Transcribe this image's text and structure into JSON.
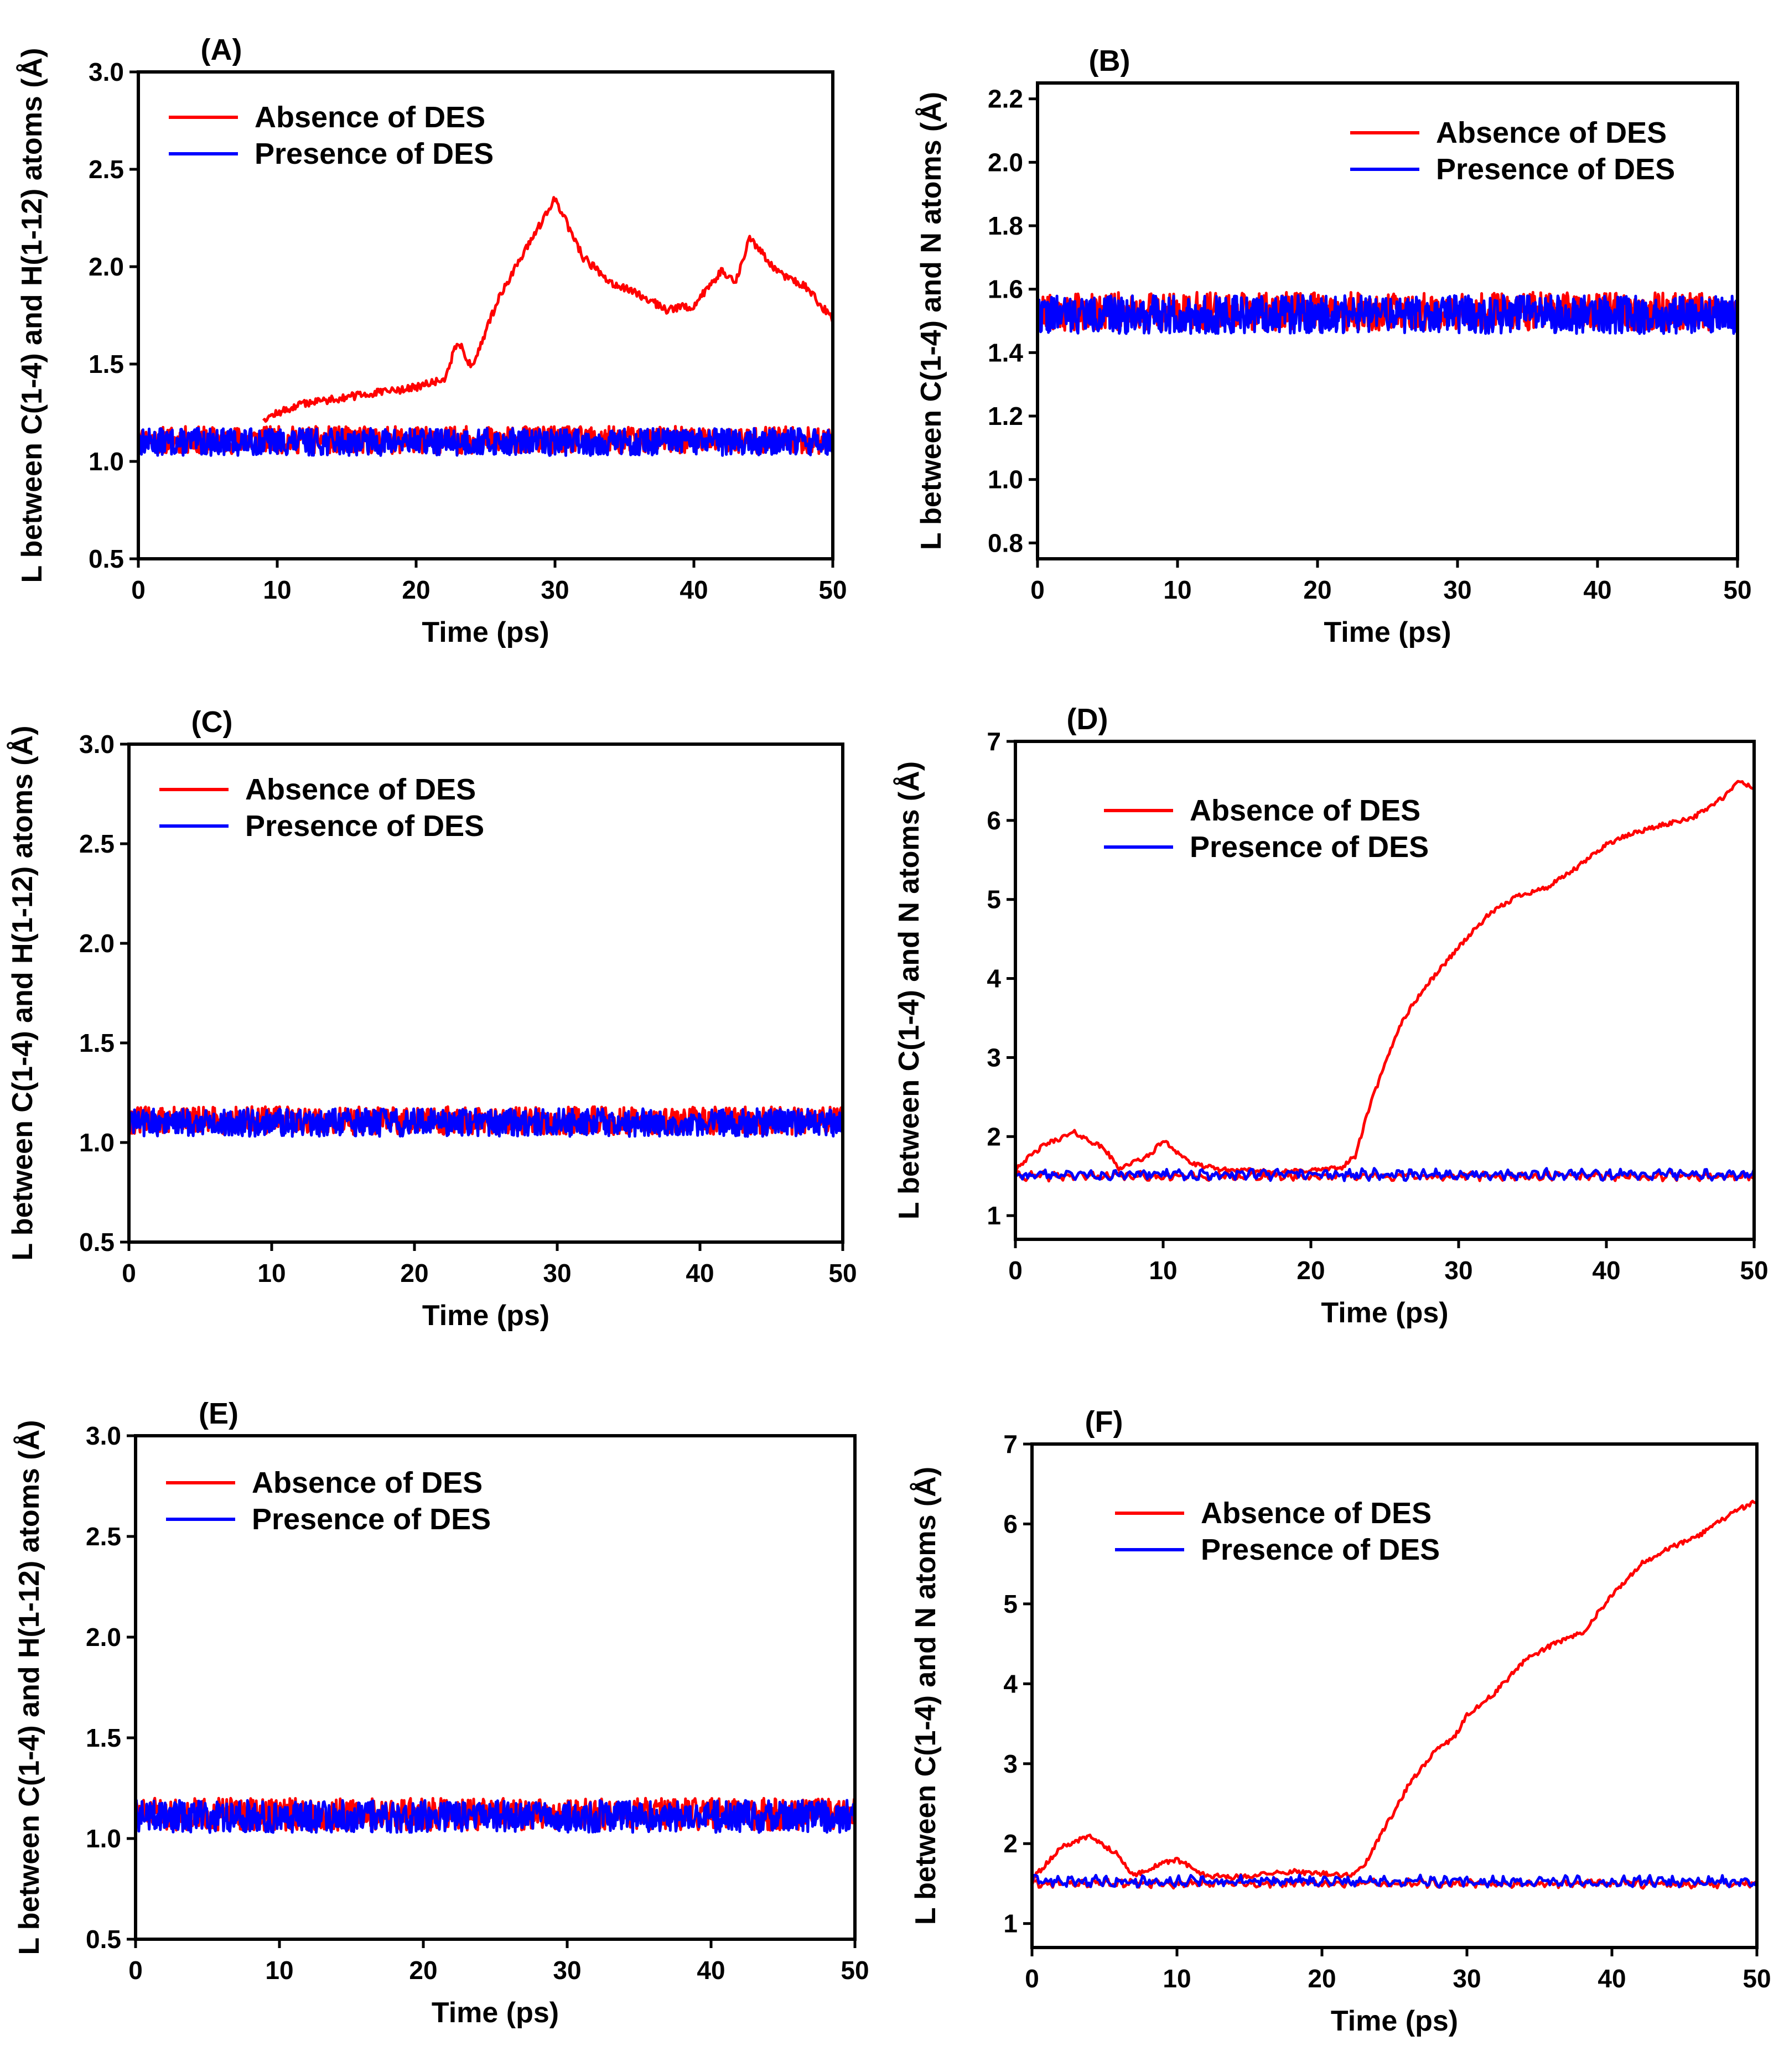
{
  "colors": {
    "absence": "#ff0000",
    "presence": "#0000ff",
    "axis": "#000000"
  },
  "chart_data": [
    {
      "panel": "(A)",
      "type": "line",
      "title": "",
      "xlabel": "Time (ps)",
      "ylabel": "L between C(1-4) and H(1-12) atoms (Å)",
      "xlim": [
        0,
        50
      ],
      "ylim": [
        0.5,
        3.0
      ],
      "xticks": [
        "0",
        "10",
        "20",
        "30",
        "40",
        "50"
      ],
      "yticks": [
        "0.5",
        "1.0",
        "1.5",
        "2.0",
        "2.5",
        "3.0"
      ],
      "legend": {
        "position": "top-left",
        "entries": [
          "Absence of DES",
          "Presence of DES"
        ]
      },
      "series": [
        {
          "name": "Absence of DES",
          "kind": "band",
          "mean": 1.11,
          "spread": 0.07,
          "seed": 11,
          "x": [
            0,
            50
          ],
          "y": [
            1.11,
            1.11
          ]
        },
        {
          "name": "Absence of DES",
          "kind": "drift",
          "seed": 12,
          "noise": 0.02,
          "x": [
            9,
            12,
            16,
            20,
            22,
            23,
            24,
            26,
            28,
            30,
            32,
            34,
            36,
            38,
            40,
            42,
            43,
            44,
            46,
            48,
            50
          ],
          "y": [
            1.22,
            1.3,
            1.34,
            1.38,
            1.42,
            1.62,
            1.48,
            1.85,
            2.1,
            2.35,
            2.05,
            1.92,
            1.86,
            1.78,
            1.8,
            1.98,
            1.92,
            2.15,
            1.97,
            1.9,
            1.73
          ]
        },
        {
          "name": "Presence of DES",
          "kind": "band",
          "mean": 1.1,
          "spread": 0.07,
          "seed": 13,
          "x": [
            0,
            50
          ],
          "y": [
            1.1,
            1.1
          ]
        }
      ]
    },
    {
      "panel": "(B)",
      "type": "line",
      "title": "",
      "xlabel": "Time (ps)",
      "ylabel": "L between C(1-4) and N atoms (Å)",
      "xlim": [
        0,
        50
      ],
      "ylim": [
        0.75,
        2.25
      ],
      "xticks": [
        "0",
        "10",
        "20",
        "30",
        "40",
        "50"
      ],
      "yticks": [
        "0.8",
        "1.0",
        "1.2",
        "1.4",
        "1.6",
        "1.8",
        "2.0",
        "2.2"
      ],
      "legend": {
        "position": "top-right",
        "entries": [
          "Absence of DES",
          "Presence of DES"
        ]
      },
      "series": [
        {
          "name": "Absence of DES",
          "kind": "band",
          "mean": 1.53,
          "spread": 0.06,
          "seed": 21,
          "x": [
            0,
            50
          ],
          "y": [
            1.53,
            1.53
          ]
        },
        {
          "name": "Presence of DES",
          "kind": "band",
          "mean": 1.52,
          "spread": 0.06,
          "seed": 22,
          "x": [
            0,
            50
          ],
          "y": [
            1.52,
            1.52
          ]
        }
      ]
    },
    {
      "panel": "(C)",
      "type": "line",
      "title": "",
      "xlabel": "Time (ps)",
      "ylabel": "L between C(1-4) and H(1-12) atoms (Å)",
      "xlim": [
        0,
        50
      ],
      "ylim": [
        0.5,
        3.0
      ],
      "xticks": [
        "0",
        "10",
        "20",
        "30",
        "40",
        "50"
      ],
      "yticks": [
        "0.5",
        "1.0",
        "1.5",
        "2.0",
        "2.5",
        "3.0"
      ],
      "legend": {
        "position": "top-left",
        "entries": [
          "Absence of DES",
          "Presence of DES"
        ]
      },
      "series": [
        {
          "name": "Absence of DES",
          "kind": "band",
          "mean": 1.11,
          "spread": 0.07,
          "seed": 31,
          "x": [
            0,
            50
          ],
          "y": [
            1.11,
            1.11
          ]
        },
        {
          "name": "Presence of DES",
          "kind": "band",
          "mean": 1.1,
          "spread": 0.07,
          "seed": 32,
          "x": [
            0,
            50
          ],
          "y": [
            1.1,
            1.1
          ]
        }
      ]
    },
    {
      "panel": "(D)",
      "type": "line",
      "title": "",
      "xlabel": "Time (ps)",
      "ylabel": "L between C(1-4) and N atoms (Å)",
      "xlim": [
        0,
        50
      ],
      "ylim": [
        0.7,
        7.0
      ],
      "xticks": [
        "0",
        "10",
        "20",
        "30",
        "40",
        "50"
      ],
      "yticks": [
        "1",
        "2",
        "3",
        "4",
        "5",
        "6",
        "7"
      ],
      "legend": {
        "position": "top-left",
        "entries": [
          "Absence of DES",
          "Presence of DES"
        ]
      },
      "series": [
        {
          "name": "Absence of DES",
          "kind": "thin",
          "mean": 1.5,
          "spread": 0.04,
          "seed": 41,
          "x": [
            0,
            50
          ],
          "y": [
            1.5,
            1.5
          ]
        },
        {
          "name": "Absence of DES",
          "kind": "drift",
          "seed": 42,
          "noise": 0.03,
          "x": [
            0,
            2,
            4,
            6,
            7,
            9,
            10,
            12,
            14,
            18,
            22,
            23,
            24,
            25,
            26,
            27,
            28,
            30,
            32,
            34,
            36,
            38,
            40,
            42,
            44,
            46,
            48,
            49,
            50
          ],
          "y": [
            1.6,
            1.9,
            2.05,
            1.85,
            1.6,
            1.75,
            1.95,
            1.65,
            1.58,
            1.55,
            1.6,
            1.75,
            2.4,
            2.9,
            3.4,
            3.7,
            3.95,
            4.4,
            4.8,
            5.05,
            5.15,
            5.4,
            5.7,
            5.85,
            5.95,
            6.05,
            6.3,
            6.5,
            6.4
          ]
        },
        {
          "name": "Presence of DES",
          "kind": "thin",
          "mean": 1.52,
          "spread": 0.05,
          "seed": 43,
          "x": [
            0,
            50
          ],
          "y": [
            1.52,
            1.52
          ]
        }
      ]
    },
    {
      "panel": "(E)",
      "type": "line",
      "title": "",
      "xlabel": "Time (ps)",
      "ylabel": "L between C(1-4) and H(1-12) atoms (Å)",
      "xlim": [
        0,
        50
      ],
      "ylim": [
        0.5,
        3.0
      ],
      "xticks": [
        "0",
        "10",
        "20",
        "30",
        "40",
        "50"
      ],
      "yticks": [
        "0.5",
        "1.0",
        "1.5",
        "2.0",
        "2.5",
        "3.0"
      ],
      "legend": {
        "position": "top-left",
        "entries": [
          "Absence of DES",
          "Presence of DES"
        ]
      },
      "series": [
        {
          "name": "Absence of DES",
          "kind": "band",
          "mean": 1.12,
          "spread": 0.08,
          "seed": 51,
          "x": [
            0,
            50
          ],
          "y": [
            1.12,
            1.12
          ]
        },
        {
          "name": "Presence of DES",
          "kind": "band",
          "mean": 1.11,
          "spread": 0.08,
          "seed": 52,
          "x": [
            0,
            50
          ],
          "y": [
            1.11,
            1.11
          ]
        }
      ]
    },
    {
      "panel": "(F)",
      "type": "line",
      "title": "",
      "xlabel": "Time (ps)",
      "ylabel": "L between C(1-4) and N atoms (Å)",
      "xlim": [
        0,
        50
      ],
      "ylim": [
        0.7,
        7.0
      ],
      "xticks": [
        "0",
        "10",
        "20",
        "30",
        "40",
        "50"
      ],
      "yticks": [
        "1",
        "2",
        "3",
        "4",
        "5",
        "6",
        "7"
      ],
      "legend": {
        "position": "top-left",
        "entries": [
          "Absence of DES",
          "Presence of DES"
        ]
      },
      "series": [
        {
          "name": "Absence of DES",
          "kind": "thin",
          "mean": 1.5,
          "spread": 0.04,
          "seed": 61,
          "x": [
            0,
            50
          ],
          "y": [
            1.5,
            1.5
          ]
        },
        {
          "name": "Absence of DES",
          "kind": "drift",
          "seed": 62,
          "noise": 0.03,
          "x": [
            0,
            2,
            4,
            6,
            7,
            9,
            10,
            12,
            14,
            18,
            22,
            23,
            24,
            25,
            26,
            28,
            29,
            30,
            32,
            34,
            36,
            38,
            40,
            42,
            44,
            46,
            48,
            50
          ],
          "y": [
            1.55,
            1.95,
            2.1,
            1.85,
            1.6,
            1.75,
            1.8,
            1.6,
            1.58,
            1.65,
            1.6,
            1.75,
            2.1,
            2.4,
            2.75,
            3.2,
            3.3,
            3.6,
            3.9,
            4.3,
            4.5,
            4.65,
            5.1,
            5.5,
            5.7,
            5.85,
            6.1,
            6.3
          ]
        },
        {
          "name": "Presence of DES",
          "kind": "thin",
          "mean": 1.53,
          "spread": 0.05,
          "seed": 63,
          "x": [
            0,
            50
          ],
          "y": [
            1.53,
            1.53
          ]
        }
      ]
    }
  ]
}
